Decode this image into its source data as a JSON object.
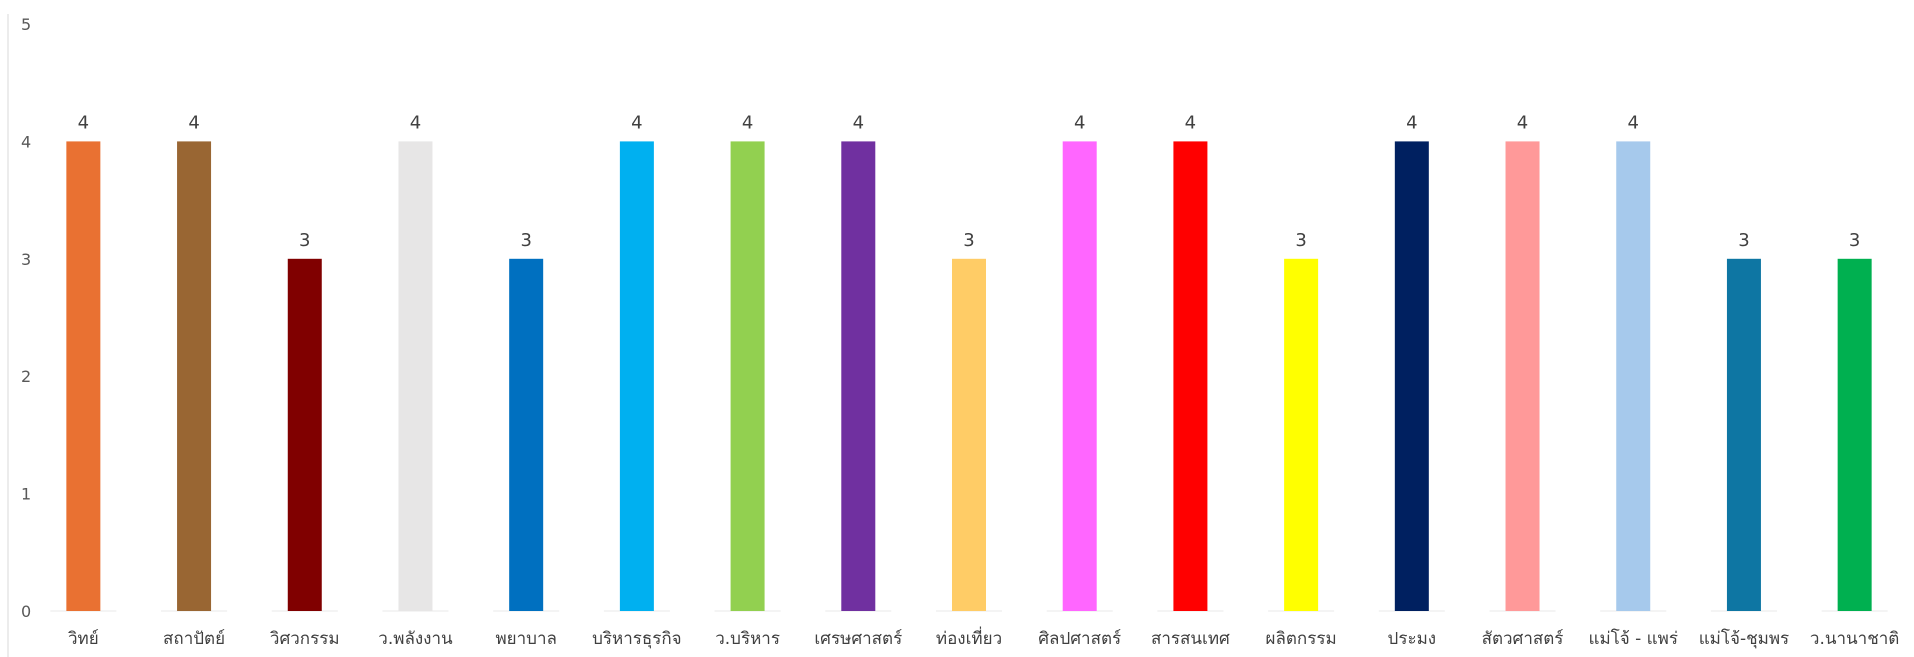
{
  "chart_data": {
    "type": "bar",
    "categories": [
      "วิทย์",
      "สถาปัตย์",
      "วิศวกรรม",
      "ว.พลังงาน",
      "พยาบาล",
      "บริหารธุรกิจ",
      "ว.บริหาร",
      "เศรษศาสตร์",
      "ท่องเที่ยว",
      "ศิลปศาสตร์",
      "สารสนเทศ",
      "ผลิตกรรม",
      "ประมง",
      "สัตวศาสตร์",
      "แม่โจ้ - แพร่",
      "แม่โจ้-ชุมพร",
      "ว.นานาชาติ"
    ],
    "values": [
      4,
      4,
      3,
      4,
      3,
      4,
      4,
      4,
      3,
      4,
      4,
      3,
      4,
      4,
      4,
      3,
      3
    ],
    "data_labels": [
      "4",
      "4",
      "3",
      "4",
      "3",
      "4",
      "4",
      "4",
      "3",
      "4",
      "4",
      "3",
      "4",
      "4",
      "4",
      "3",
      "3"
    ],
    "colors": [
      "#E97132",
      "#996633",
      "#800000",
      "#E7E6E6",
      "#0070C0",
      "#00B0F0",
      "#92D050",
      "#7030A0",
      "#FFCC66",
      "#FF66FF",
      "#FF0000",
      "#FFFF00",
      "#002060",
      "#FF9999",
      "#A6C9EC",
      "#0E76A3",
      "#00B050"
    ],
    "yticks": [
      "0",
      "1",
      "2",
      "3",
      "4",
      "5"
    ],
    "ylim": [
      0,
      5
    ],
    "grid": false,
    "legend": "none",
    "title": "",
    "xlabel": "",
    "ylabel": ""
  }
}
